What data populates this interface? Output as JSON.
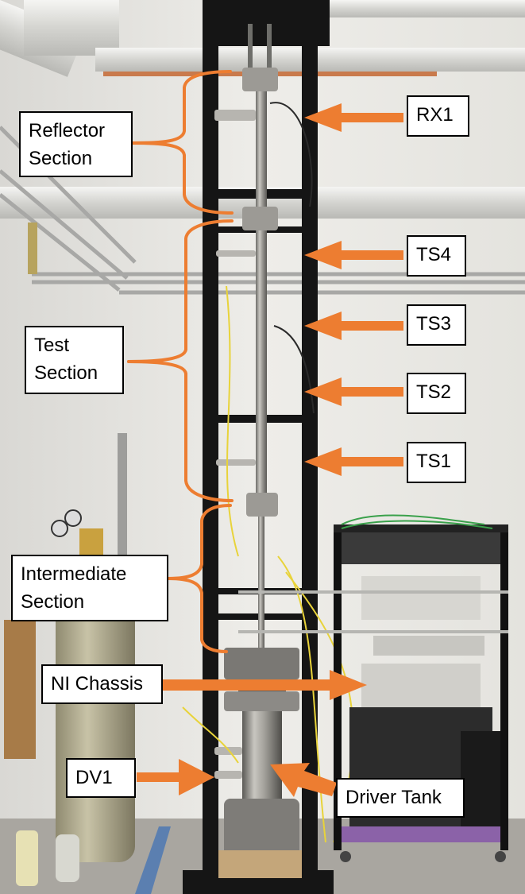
{
  "labels": {
    "reflector": [
      "Reflector",
      "Section"
    ],
    "test": [
      "Test",
      "Section"
    ],
    "intermediate": [
      "Intermediate",
      "Section"
    ],
    "ni_chassis": "NI Chassis",
    "dv1": "DV1",
    "driver_tank": "Driver Tank",
    "rx1": "RX1",
    "ts4": "TS4",
    "ts3": "TS3",
    "ts2": "TS2",
    "ts1": "TS1"
  },
  "colors": {
    "arrow": "#ed7d31",
    "label_bg": "#ffffff",
    "label_border": "#000000"
  }
}
